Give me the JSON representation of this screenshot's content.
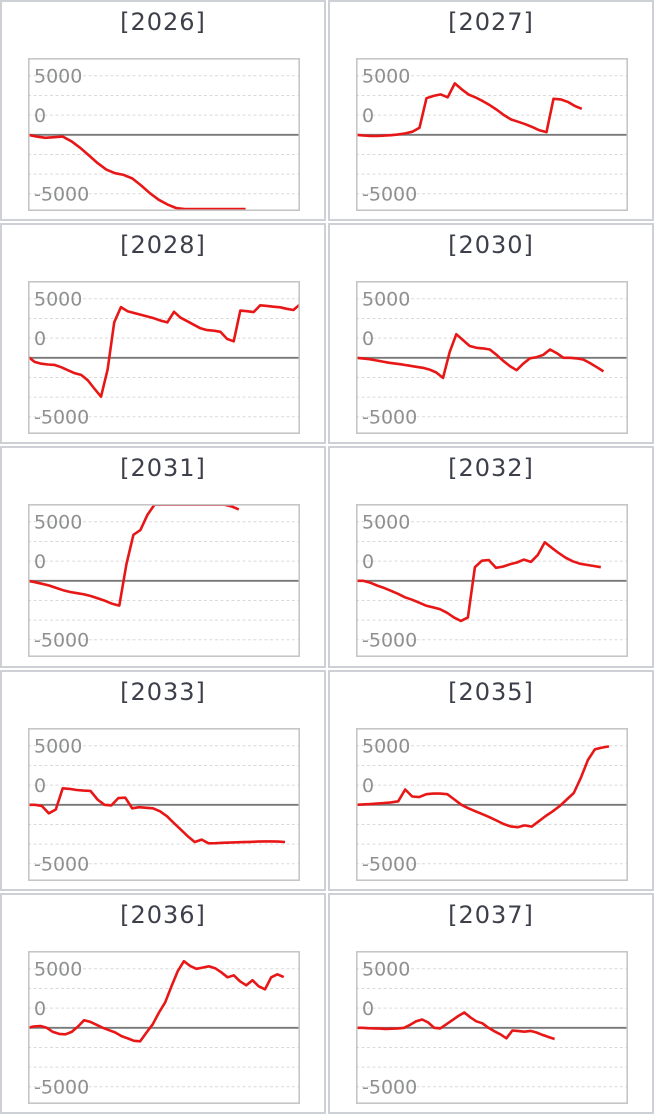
{
  "page": {
    "background": "#ffffff",
    "grid_rows": 5,
    "grid_cols": 2
  },
  "style": {
    "series_color": "#e81717",
    "zero_line_color": "#787878",
    "gridline_color": "#dadada",
    "tick_label_color": "#8f9091",
    "title_color": "#3d3f4b",
    "plot_border_color": "#c4c6c8",
    "tile_border_color": "#cdd1d5"
  },
  "axis": {
    "tick_labels": [
      "5000",
      "0",
      "-5000"
    ],
    "tick_label_values": [
      5000,
      0,
      -5000
    ],
    "label_anchor_values": [
      5000,
      1667,
      -5000
    ],
    "gridline_values": [
      5000,
      3333,
      1667,
      0,
      -1667,
      -3333,
      -5000
    ],
    "ylim": [
      -6460,
      6500
    ],
    "zero_line_value": 0,
    "grid": true,
    "legend": false,
    "x_axis_labels": false
  },
  "chart_data": [
    {
      "type": "line",
      "title": "[2026]",
      "x_end_fraction": 0.8,
      "values": [
        0,
        -150,
        -250,
        -200,
        -150,
        -550,
        -1100,
        -1750,
        -2400,
        -2950,
        -3250,
        -3400,
        -3700,
        -4300,
        -4950,
        -5500,
        -5900,
        -6200,
        -6300,
        -6300,
        -6300,
        -6300,
        -6300,
        -6300,
        -6300,
        -6300
      ]
    },
    {
      "type": "line",
      "title": "[2027]",
      "x_end_fraction": 0.83,
      "values": [
        0,
        -60,
        -90,
        -100,
        -70,
        -30,
        30,
        120,
        260,
        600,
        3100,
        3300,
        3420,
        3180,
        4360,
        3850,
        3400,
        3150,
        2850,
        2500,
        2100,
        1650,
        1300,
        1100,
        900,
        650,
        380,
        230,
        3050,
        3000,
        2800,
        2450,
        2200
      ]
    },
    {
      "type": "line",
      "title": "[2028]",
      "x_end_fraction": 1.0,
      "values": [
        100,
        -350,
        -500,
        -570,
        -600,
        -800,
        -1050,
        -1300,
        -1450,
        -1900,
        -2600,
        -3300,
        -1000,
        3000,
        4300,
        3950,
        3800,
        3650,
        3500,
        3350,
        3150,
        3000,
        3900,
        3400,
        3100,
        2800,
        2500,
        2350,
        2300,
        2200,
        1600,
        1400,
        4000,
        3950,
        3870,
        4450,
        4400,
        4330,
        4280,
        4150,
        4050,
        4530
      ]
    },
    {
      "type": "line",
      "title": "[2030]",
      "x_end_fraction": 0.91,
      "values": [
        0,
        -50,
        -120,
        -220,
        -320,
        -420,
        -500,
        -580,
        -670,
        -760,
        -850,
        -1000,
        -1250,
        -1700,
        500,
        2000,
        1500,
        1000,
        850,
        800,
        700,
        250,
        -250,
        -700,
        -1050,
        -500,
        -50,
        50,
        250,
        700,
        400,
        0,
        0,
        -50,
        -150,
        -450,
        -800,
        -1150
      ]
    },
    {
      "type": "line",
      "title": "[2031]",
      "x_end_fraction": 0.775,
      "values": [
        0,
        -120,
        -250,
        -400,
        -600,
        -800,
        -950,
        -1050,
        -1150,
        -1300,
        -1500,
        -1700,
        -1950,
        -2100,
        1400,
        3900,
        4300,
        5600,
        6450,
        6450,
        6450,
        6450,
        6450,
        6450,
        6450,
        6450,
        6450,
        6450,
        6450,
        6300,
        6050
      ]
    },
    {
      "type": "line",
      "title": "[2032]",
      "x_end_fraction": 0.9,
      "values": [
        0,
        0,
        -150,
        -400,
        -600,
        -850,
        -1100,
        -1400,
        -1600,
        -1850,
        -2100,
        -2250,
        -2400,
        -2700,
        -3100,
        -3400,
        -3100,
        1150,
        1700,
        1750,
        1100,
        1200,
        1400,
        1550,
        1800,
        1600,
        2200,
        3260,
        2800,
        2350,
        1950,
        1650,
        1450,
        1350,
        1250,
        1150
      ]
    },
    {
      "type": "line",
      "title": "[2033]",
      "x_end_fraction": 0.945,
      "values": [
        0,
        0,
        -100,
        -720,
        -400,
        1400,
        1350,
        1250,
        1200,
        1180,
        450,
        0,
        -50,
        570,
        600,
        -300,
        -200,
        -250,
        -300,
        -550,
        -970,
        -1550,
        -2100,
        -2670,
        -3150,
        -2950,
        -3260,
        -3250,
        -3220,
        -3200,
        -3180,
        -3160,
        -3140,
        -3120,
        -3100,
        -3100,
        -3120,
        -3150
      ]
    },
    {
      "type": "line",
      "title": "[2035]",
      "x_end_fraction": 0.93,
      "values": [
        0,
        30,
        60,
        100,
        150,
        200,
        300,
        1300,
        700,
        650,
        900,
        950,
        950,
        900,
        450,
        0,
        -300,
        -550,
        -800,
        -1050,
        -1330,
        -1630,
        -1830,
        -1900,
        -1750,
        -1850,
        -1400,
        -950,
        -550,
        -100,
        450,
        1000,
        2300,
        3800,
        4700,
        4850,
        4950
      ]
    },
    {
      "type": "line",
      "title": "[2036]",
      "x_end_fraction": 0.94,
      "values": [
        0,
        120,
        150,
        0,
        -350,
        -520,
        -550,
        -350,
        100,
        640,
        500,
        250,
        0,
        -200,
        -400,
        -700,
        -900,
        -1100,
        -1140,
        -400,
        300,
        1300,
        2160,
        3500,
        4800,
        5640,
        5250,
        5000,
        5100,
        5210,
        5050,
        4700,
        4280,
        4450,
        3940,
        3600,
        4030,
        3520,
        3260,
        4280,
        4530,
        4300
      ]
    },
    {
      "type": "line",
      "title": "[2037]",
      "x_end_fraction": 0.73,
      "values": [
        0,
        0,
        -30,
        -50,
        -70,
        -90,
        -80,
        -60,
        0,
        250,
        550,
        700,
        450,
        0,
        -50,
        300,
        640,
        1000,
        1300,
        890,
        550,
        380,
        0,
        -300,
        -550,
        -890,
        -230,
        -280,
        -330,
        -260,
        -400,
        -600,
        -780,
        -950
      ]
    }
  ]
}
